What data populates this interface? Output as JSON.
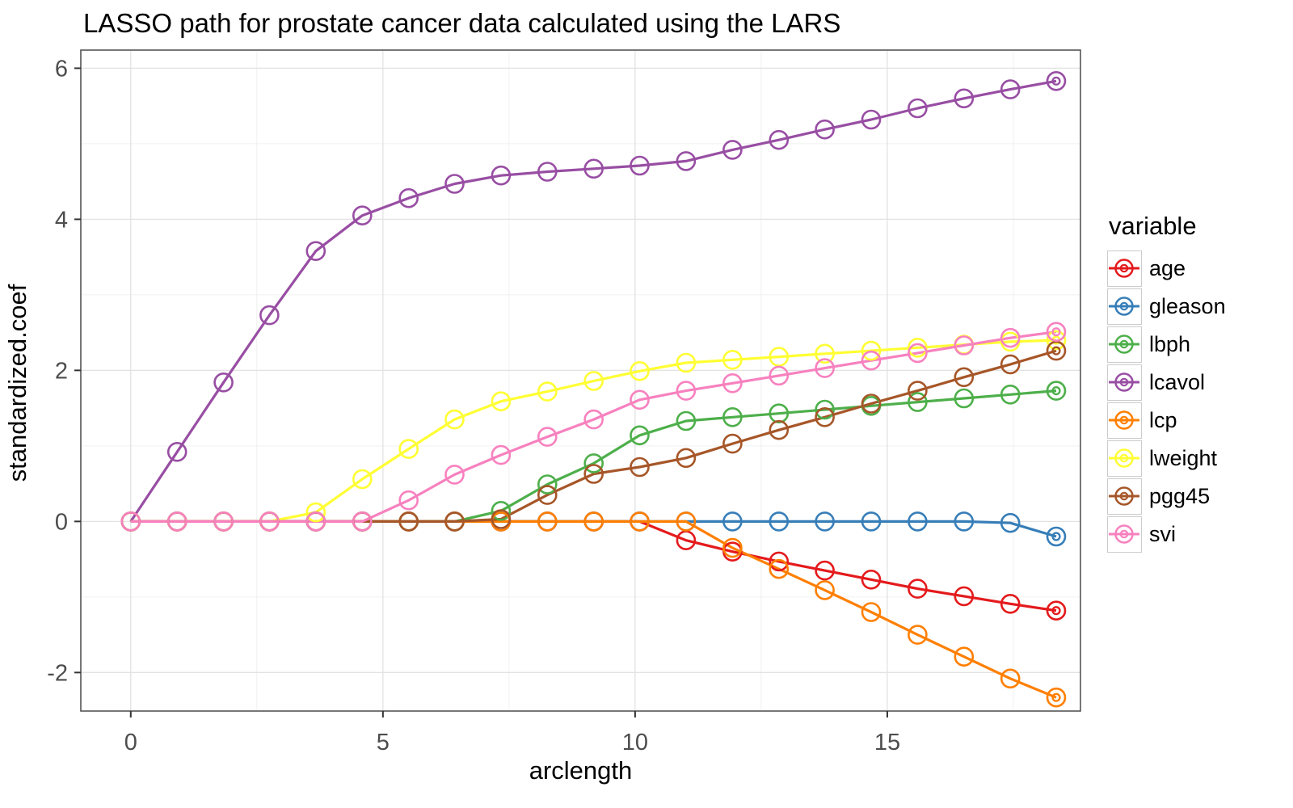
{
  "title": "LASSO path for prostate cancer data calculated using the LARS",
  "chart_data": {
    "type": "line",
    "title": "LASSO path for prostate cancer data calculated using the LARS",
    "xlabel": "arclength",
    "ylabel": "standardized.coef",
    "legend_title": "variable",
    "legend_position": "right",
    "grid": true,
    "marker": "open-circle",
    "x_ticks": [
      0,
      5,
      10,
      15
    ],
    "x_minor_ticks": [
      2.5,
      7.5,
      12.5,
      17.5
    ],
    "y_ticks": [
      -2,
      0,
      2,
      4,
      6
    ],
    "y_minor_ticks": [
      -1,
      1,
      3,
      5
    ],
    "xlim": [
      -0.99,
      18.83
    ],
    "ylim": [
      -2.51,
      6.24
    ],
    "x": [
      0,
      0.92,
      1.84,
      2.75,
      3.67,
      4.59,
      5.51,
      6.42,
      7.34,
      8.26,
      9.18,
      10.09,
      11.01,
      11.93,
      12.85,
      13.76,
      14.68,
      15.6,
      16.52,
      17.44,
      18.35
    ],
    "series": [
      {
        "name": "age",
        "color": "#E41A1C",
        "values": [
          0,
          0,
          0,
          0,
          0,
          0,
          0,
          0,
          0,
          0,
          0,
          0,
          -0.25,
          -0.4,
          -0.53,
          -0.65,
          -0.77,
          -0.89,
          -0.99,
          -1.09,
          -1.18
        ]
      },
      {
        "name": "gleason",
        "color": "#377EB8",
        "values": [
          0,
          0,
          0,
          0,
          0,
          0,
          0,
          0,
          0,
          0,
          0,
          0,
          0,
          0,
          0,
          0,
          0,
          0,
          0,
          -0.02,
          -0.2
        ]
      },
      {
        "name": "lbph",
        "color": "#4DAF4A",
        "values": [
          0,
          0,
          0,
          0,
          0,
          0,
          0,
          0,
          0.14,
          0.49,
          0.77,
          1.14,
          1.33,
          1.38,
          1.43,
          1.48,
          1.53,
          1.58,
          1.63,
          1.68,
          1.73
        ]
      },
      {
        "name": "lcavol",
        "color": "#984EA3",
        "values": [
          0,
          0.92,
          1.84,
          2.73,
          3.58,
          4.05,
          4.28,
          4.47,
          4.58,
          4.63,
          4.67,
          4.71,
          4.77,
          4.92,
          5.05,
          5.19,
          5.32,
          5.47,
          5.6,
          5.72,
          5.83
        ]
      },
      {
        "name": "lcp",
        "color": "#FF7F00",
        "values": [
          0,
          0,
          0,
          0,
          0,
          0,
          0,
          0,
          0,
          0,
          0,
          0,
          0,
          -0.35,
          -0.63,
          -0.91,
          -1.2,
          -1.5,
          -1.79,
          -2.08,
          -2.33
        ]
      },
      {
        "name": "lweight",
        "color": "#FFFF33",
        "values": [
          0,
          0,
          0,
          0,
          0.12,
          0.56,
          0.96,
          1.35,
          1.59,
          1.72,
          1.86,
          1.99,
          2.1,
          2.14,
          2.18,
          2.22,
          2.26,
          2.3,
          2.34,
          2.38,
          2.4
        ]
      },
      {
        "name": "pgg45",
        "color": "#A65628",
        "values": [
          0,
          0,
          0,
          0,
          0,
          0,
          0,
          0,
          0.03,
          0.35,
          0.63,
          0.72,
          0.84,
          1.03,
          1.21,
          1.38,
          1.56,
          1.73,
          1.91,
          2.08,
          2.26
        ]
      },
      {
        "name": "svi",
        "color": "#F781BF",
        "values": [
          0,
          0,
          0,
          0,
          0,
          0,
          0.28,
          0.62,
          0.88,
          1.12,
          1.35,
          1.61,
          1.73,
          1.83,
          1.93,
          2.03,
          2.13,
          2.23,
          2.33,
          2.43,
          2.51
        ]
      }
    ]
  },
  "style": {
    "panel_border_color": "#555555",
    "grid_major_color": "#e2e2e2",
    "grid_minor_color": "#f0f0f0",
    "tick_color": "#333333",
    "tick_label_color": "#4d4d4d"
  }
}
